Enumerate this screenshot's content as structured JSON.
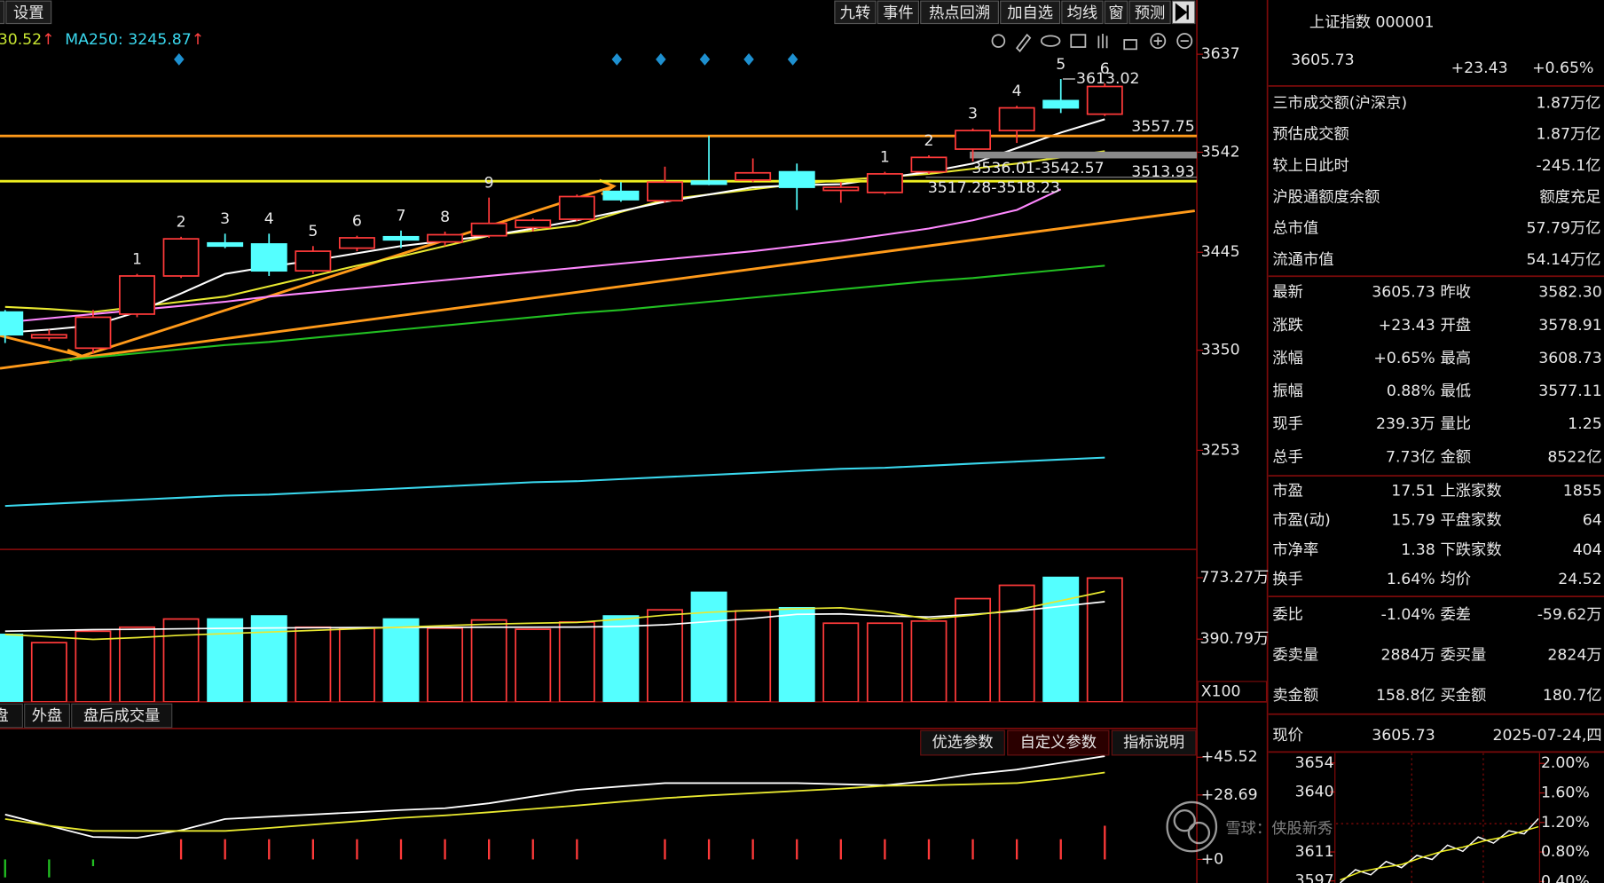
{
  "toolbar": {
    "left": "设置",
    "right": [
      "九转",
      "事件",
      "热点回溯",
      "加自选",
      "均线",
      "窗",
      "预测"
    ]
  },
  "ma_header": {
    "items": [
      {
        "text": "30.52",
        "color": "#c8e632"
      },
      {
        "text": "MA250: 3245.87",
        "color": "#3ad8ee"
      }
    ],
    "arrow": "↑"
  },
  "chart_data": [
    {
      "type": "candlestick",
      "open": [
        3387,
        3362,
        3352,
        3385,
        3422,
        3454,
        3453,
        3427,
        3449,
        3460,
        3455,
        3461,
        3469,
        3477,
        3504,
        3495,
        3514,
        3515,
        3523,
        3505,
        3503,
        3523,
        3545,
        3563,
        3592,
        3578.91
      ],
      "high": [
        3389,
        3370,
        3389,
        3424,
        3460,
        3463,
        3463,
        3451,
        3461,
        3466,
        3465,
        3498,
        3478,
        3501,
        3513,
        3528,
        3558,
        3536,
        3531,
        3513,
        3523,
        3539,
        3565,
        3587,
        3613.02,
        3608.73
      ],
      "low": [
        3357,
        3359,
        3347,
        3382,
        3420,
        3449,
        3422,
        3424,
        3446,
        3449,
        3451,
        3459,
        3465,
        3475,
        3494,
        3493,
        3510,
        3513,
        3486,
        3493,
        3501,
        3521,
        3533,
        3551,
        3580,
        3577.11
      ],
      "close": [
        3365,
        3365,
        3382,
        3422,
        3458,
        3451,
        3427,
        3446,
        3459,
        3457,
        3462,
        3473,
        3476,
        3499,
        3496,
        3513,
        3511,
        3522,
        3508,
        3508,
        3521,
        3537,
        3563,
        3585,
        3585,
        3605.73
      ],
      "up_color": "#ff3a3a",
      "down_color": "#54ffff",
      "count_labels": [
        null,
        null,
        null,
        {
          "text": "1",
          "color": "#ff33ff"
        },
        {
          "text": "2",
          "color": "#ff33ff"
        },
        {
          "text": "3",
          "color": "#ff33ff"
        },
        {
          "text": "4",
          "color": "#ff33ff"
        },
        {
          "text": "5",
          "color": "#ff33ff"
        },
        {
          "text": "6",
          "color": "#ff33ff"
        },
        {
          "text": "7",
          "color": "#ff33ff"
        },
        {
          "text": "8",
          "color": "#ff33ff"
        },
        {
          "text": "9",
          "color": "#33e033"
        },
        null,
        null,
        null,
        null,
        null,
        null,
        null,
        null,
        {
          "text": "1",
          "color": "#ff33ff"
        },
        {
          "text": "2",
          "color": "#ff33ff"
        },
        {
          "text": "3",
          "color": "#ff33ff"
        },
        {
          "text": "4",
          "color": "#ff33ff"
        },
        {
          "text": "5",
          "color": "#ff33ff"
        },
        {
          "text": "6",
          "color": "#ff33ff"
        }
      ],
      "series": [
        {
          "color": "#3ad8ee",
          "values": [
            3199,
            3201,
            3203,
            3205,
            3207,
            3209,
            3210,
            3212,
            3214,
            3216,
            3218,
            3220,
            3222,
            3223,
            3225,
            3227,
            3229,
            3231,
            3233,
            3235,
            3236,
            3238,
            3240,
            3242,
            3244,
            3245.87
          ]
        },
        {
          "color": "#22c022",
          "values": [
            null,
            3339,
            3343,
            3347,
            3351,
            3355,
            3358,
            3362,
            3366,
            3370,
            3374,
            3378,
            3382,
            3386,
            3389,
            3393,
            3397,
            3401,
            3405,
            3409,
            3413,
            3417,
            3420,
            3424,
            3428,
            3432
          ]
        },
        {
          "color": "#ff88ff",
          "values": [
            3377,
            3381,
            3385,
            3389,
            3393,
            3397,
            3402,
            3406,
            3410,
            3414,
            3418,
            3422,
            3426,
            3430,
            3434,
            3438,
            3442,
            3446,
            3451,
            3456,
            3462,
            3468,
            3476,
            3486,
            3506,
            null
          ]
        },
        {
          "color": "#e8e830",
          "values": [
            3392,
            3390,
            3387,
            3392,
            3397,
            3402,
            3412,
            3422,
            3432,
            3441,
            3451,
            3461,
            3466,
            3471,
            3484,
            3496,
            3501,
            3506,
            3511,
            3515,
            3518,
            3521,
            3526,
            3531,
            3537,
            3543
          ]
        },
        {
          "color": "#ffffff",
          "values": [
            3367,
            3370,
            3374,
            3387,
            3405,
            3424,
            3431,
            3437,
            3444,
            3451,
            3456,
            3461,
            3468,
            3476,
            3485,
            3494,
            3501,
            3508,
            3510,
            3511,
            3517,
            3523,
            3531,
            3546,
            3561,
            3574
          ]
        }
      ],
      "price_lines": [
        {
          "value": 3557.75,
          "color": "#ff9a1a"
        },
        {
          "value": 3513.93,
          "color": "#f0f020"
        }
      ],
      "gaps": [
        {
          "low": 3536.01,
          "high": 3542.57,
          "label": "3536.01-3542.57"
        },
        {
          "low": 3517.28,
          "high": 3518.23,
          "label": "3517.28-3518.23"
        }
      ],
      "ylim": [
        3158.8,
        3663.8
      ],
      "yticks": [
        3637,
        3542,
        3445,
        3350,
        3253
      ]
    },
    {
      "type": "bar",
      "values": [
        420,
        369,
        440,
        465,
        516,
        516,
        535,
        465,
        459,
        516,
        459,
        510,
        452,
        497,
        535,
        573,
        682,
        567,
        586,
        490,
        490,
        503,
        643,
        726,
        775,
        771
      ],
      "series": [
        {
          "color": "#ffffff",
          "values": [
            440,
            445,
            450,
            452,
            455,
            458,
            460,
            462,
            463,
            463,
            464,
            465,
            465,
            466,
            470,
            480,
            500,
            520,
            545,
            548,
            535,
            529,
            545,
            565,
            595,
            624
          ]
        },
        {
          "color": "#e8e830",
          "values": [
            420,
            405,
            389,
            400,
            415,
            425,
            435,
            445,
            455,
            465,
            475,
            484,
            490,
            495,
            515,
            540,
            558,
            570,
            580,
            586,
            560,
            516,
            540,
            573,
            630,
            688
          ]
        }
      ],
      "ylim": [
        0,
        930
      ],
      "yticks": [
        {
          "value": 773.27,
          "label": "773.27万"
        },
        {
          "value": 390.79,
          "label": "390.79万"
        }
      ],
      "unit_label": "X100"
    },
    {
      "type": "line",
      "series": [
        {
          "color": "#ffffff",
          "values": [
            20,
            15,
            10,
            9.6,
            13,
            18,
            19,
            20,
            21,
            22,
            22.8,
            25,
            28,
            31,
            32.5,
            34,
            34,
            34,
            34,
            33.5,
            33,
            35,
            38,
            40,
            43,
            46
          ]
        },
        {
          "color": "#e8e830",
          "values": [
            18,
            15,
            12.7,
            12.7,
            12.7,
            12.7,
            14,
            15.5,
            17,
            18.5,
            19.6,
            21,
            22.5,
            24,
            25.7,
            27.3,
            28.5,
            29.5,
            30.5,
            31.5,
            32.8,
            33,
            33.5,
            34,
            36,
            38.7
          ]
        }
      ],
      "bars": [
        -8,
        -8,
        -3,
        0,
        9,
        9,
        9,
        9,
        9,
        9,
        9,
        9,
        9,
        9,
        0,
        9,
        9,
        9,
        9,
        9,
        9,
        9,
        9,
        9,
        9,
        15
      ],
      "ylim": [
        -10.5,
        58.3
      ],
      "yticks": [
        {
          "value": 45.52,
          "label": "+45.52"
        },
        {
          "value": 28.69,
          "label": "+28.69"
        },
        {
          "value": 0,
          "label": "+0"
        }
      ]
    }
  ],
  "tabs": [
    "盘",
    "外盘",
    "盘后成交量"
  ],
  "indicator_buttons": [
    "优选参数",
    "自定义参数",
    "指标说明"
  ],
  "quote": {
    "name": "上证指数 000001",
    "price": "3605.73",
    "change": "+23.43",
    "pct": "+0.65%"
  },
  "market_rows": [
    {
      "label": "三市成交额(沪深京)",
      "value": "1.87万亿",
      "color": "#3ee8ff"
    },
    {
      "label": "预估成交额",
      "value": "1.87万亿",
      "color": "#3ee8ff"
    },
    {
      "label": "较上日此时",
      "value": "-245.1亿",
      "color": "#3ee83e"
    },
    {
      "label": "沪股通额度余额",
      "value": "额度充足",
      "color": "#3ee8ff"
    },
    {
      "label": "总市值",
      "value": "57.79万亿",
      "color": "#3ee8ff"
    },
    {
      "label": "流通市值",
      "value": "54.14万亿",
      "color": "#3ee8ff"
    }
  ],
  "stats": [
    [
      [
        {
          "label": "最新",
          "value": "3605.73",
          "color": "#ff4040"
        },
        {
          "label": "昨收",
          "value": "3582.30",
          "color": "#e8e8e8"
        }
      ],
      [
        {
          "label": "涨跌",
          "value": "+23.43",
          "color": "#ff4040"
        },
        {
          "label": "开盘",
          "value": "3578.91",
          "color": "#3ee83e"
        }
      ],
      [
        {
          "label": "涨幅",
          "value": "+0.65%",
          "color": "#ff4040"
        },
        {
          "label": "最高",
          "value": "3608.73",
          "color": "#ff4040"
        }
      ],
      [
        {
          "label": "振幅",
          "value": "0.88%",
          "color": "#3ee8ff"
        },
        {
          "label": "最低",
          "value": "3577.11",
          "color": "#3ee83e"
        }
      ],
      [
        {
          "label": "现手",
          "value": "239.3万",
          "color": "#3ee8ff"
        },
        {
          "label": "量比",
          "value": "1.25",
          "color": "#ff4040"
        }
      ],
      [
        {
          "label": "总手",
          "value": "7.73亿",
          "color": "#3ee8ff"
        },
        {
          "label": "金额",
          "value": "8522亿",
          "color": "#3ee8ff"
        }
      ]
    ],
    [
      [
        {
          "label": "市盈",
          "value": "17.51",
          "color": "#e8e8e8"
        },
        {
          "label": "上涨家数",
          "value": "1855",
          "color": "#ff4040"
        }
      ],
      [
        {
          "label": "市盈(动)",
          "value": "15.79",
          "color": "#e8e8e8"
        },
        {
          "label": "平盘家数",
          "value": "64",
          "color": "#e8e8e8"
        }
      ],
      [
        {
          "label": "市净率",
          "value": "1.38",
          "color": "#e8e8e8"
        },
        {
          "label": "下跌家数",
          "value": "404",
          "color": "#3ee83e"
        }
      ],
      [
        {
          "label": "换手",
          "value": "1.64%",
          "color": "#3ee8ff"
        },
        {
          "label": "均价",
          "value": "24.52",
          "color": "#3ee83e"
        }
      ]
    ],
    [
      [
        {
          "label": "委比",
          "value": "-1.04%",
          "color": "#3ee83e"
        },
        {
          "label": "委差",
          "value": "-59.62万",
          "color": "#3ee83e"
        }
      ],
      [
        {
          "label": "委卖量",
          "value": "2884万",
          "color": "#e8e8e8"
        },
        {
          "label": "委买量",
          "value": "2824万",
          "color": "#ff4040"
        }
      ],
      [
        {
          "label": "卖金额",
          "value": "158.8亿",
          "color": "#3ee8ff"
        },
        {
          "label": "买金额",
          "value": "180.7亿",
          "color": "#3ee8ff"
        }
      ]
    ]
  ],
  "intraday": {
    "label": "现价",
    "price": "3605.73",
    "date": "2025-07-24,四",
    "ylim": [
      3596,
      3658.8
    ],
    "yticks": [
      3654,
      3640,
      3611,
      3597
    ],
    "y2lim": [
      0.38,
      2.14
    ],
    "y2ticks": [
      {
        "value": 2,
        "label": "2.00%"
      },
      {
        "value": 1.6,
        "label": "1.60%"
      },
      {
        "value": 1.2,
        "label": "1.20%"
      },
      {
        "value": 0.8,
        "label": "0.80%"
      },
      {
        "value": 0.4,
        "label": "0.40%"
      }
    ]
  },
  "watermark": "雪球：侠股新秀"
}
